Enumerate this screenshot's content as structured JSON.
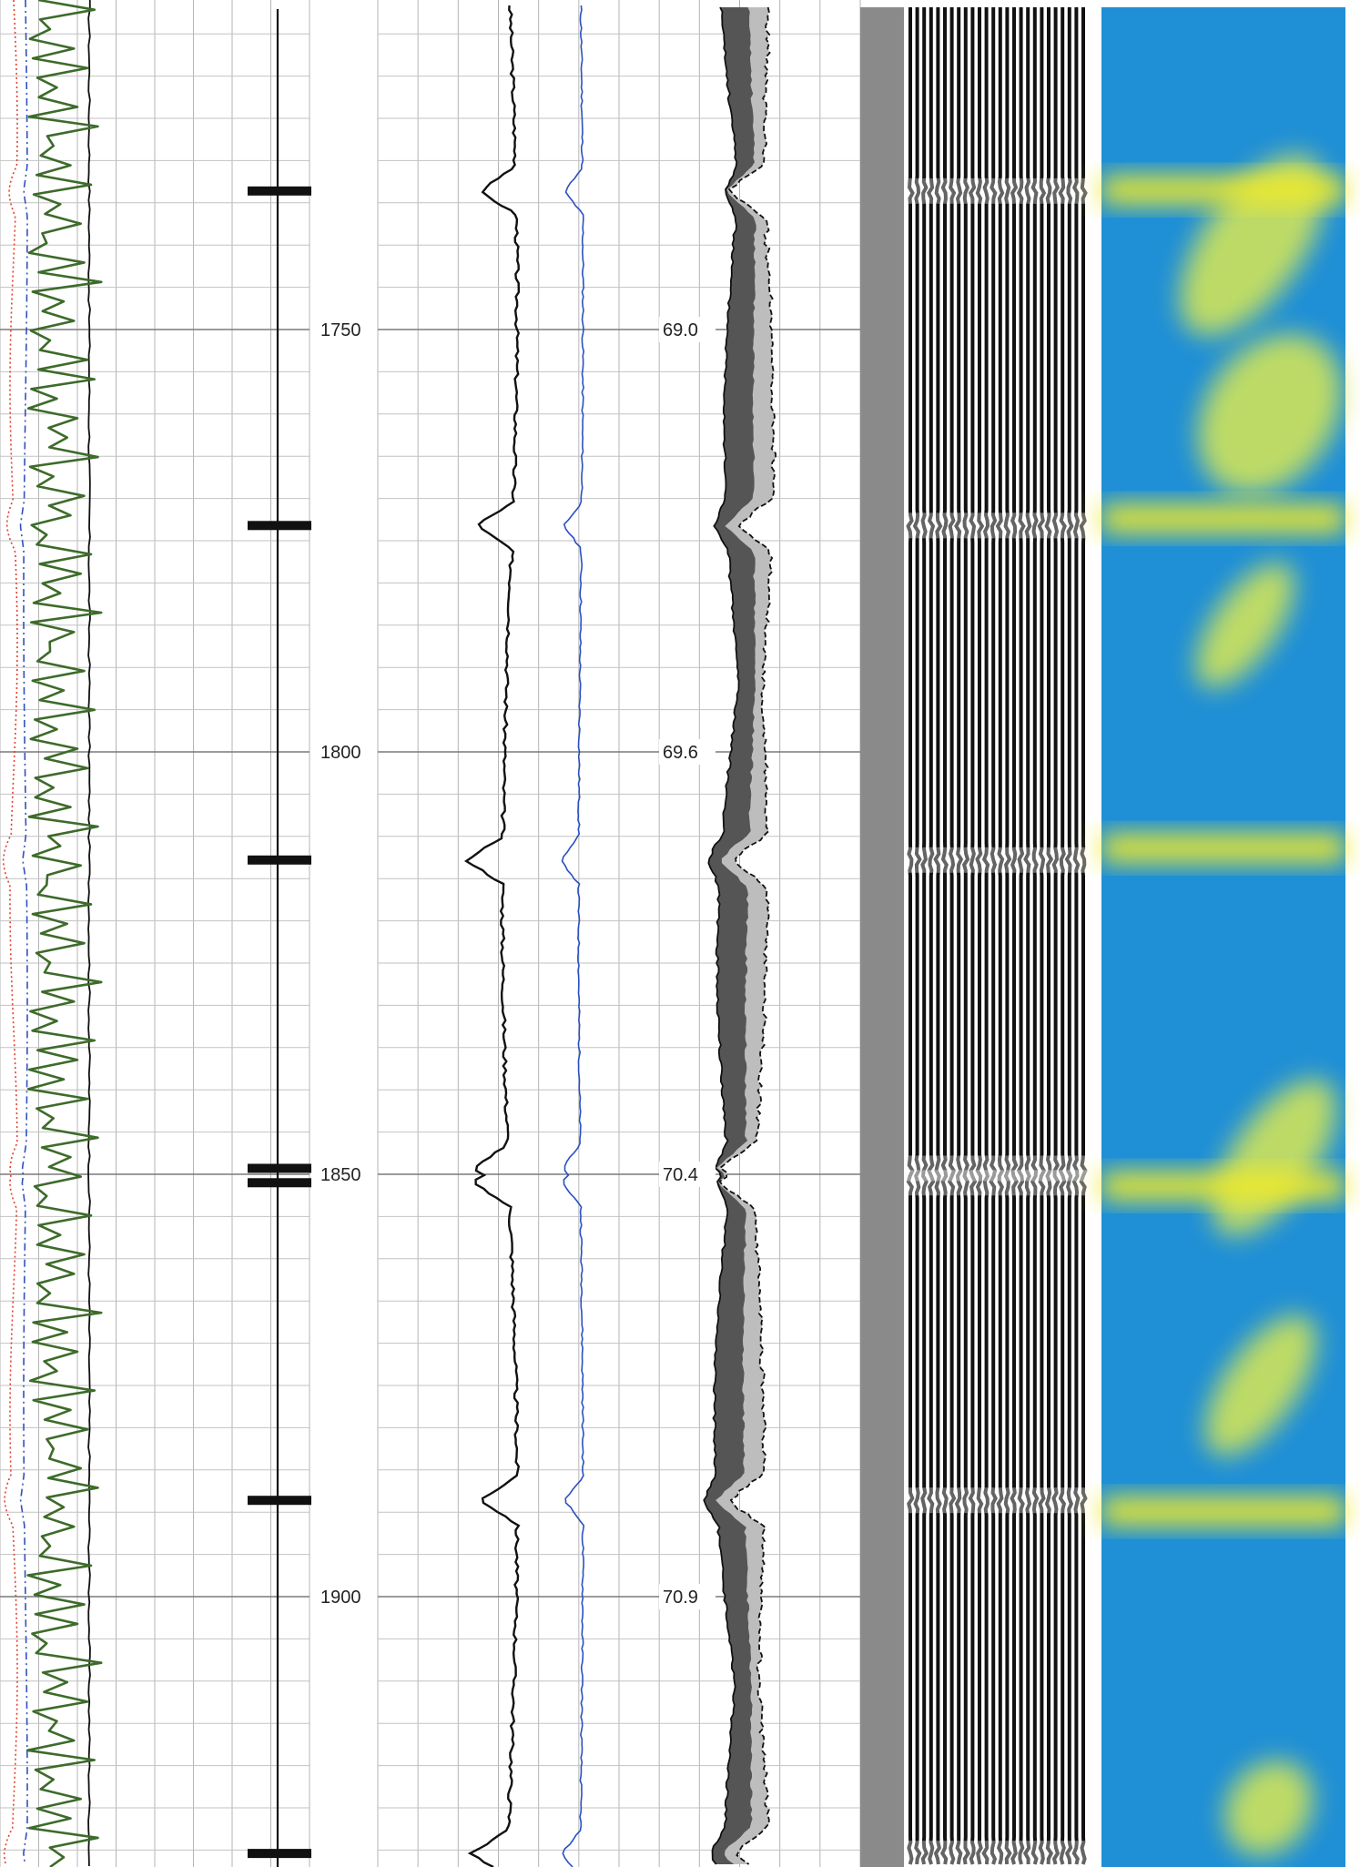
{
  "chart_data": {
    "type": "line",
    "title": "",
    "depth_axis": {
      "unit": "",
      "range": [
        1711,
        1932
      ],
      "major_step": 50,
      "minor_step": 5
    },
    "depth_labels": [
      "1750",
      "1800",
      "1850",
      "1900"
    ],
    "depth_label_values": [
      1750,
      1800,
      1850,
      1900
    ],
    "transit_time_labels": [
      "69.0",
      "69.6",
      "70.4",
      "70.9"
    ],
    "transit_time_depths": [
      1750,
      1800,
      1850,
      1900
    ],
    "collar_depths": [
      1733.6,
      1773.2,
      1812.8,
      1849.3,
      1851.0,
      1888.6,
      1930.4
    ],
    "gamma_ray_series": {
      "color": "#3d6b2a",
      "baseline": 0.52,
      "spikes": [
        0.85,
        0.2,
        0.55,
        0.75,
        0.3,
        0.6,
        0.9,
        0.25,
        0.5,
        0.8,
        0.35,
        0.65,
        0.15,
        0.7,
        0.95,
        0.4,
        0.55,
        0.2,
        0.75,
        0.85,
        0.3,
        0.6,
        0.45,
        0.9,
        0.25,
        0.7,
        0.5,
        0.15,
        0.8,
        0.65,
        0.35,
        0.95,
        0.55,
        0.2,
        0.7,
        0.4,
        0.85,
        0.3,
        0.6,
        0.75,
        0.25,
        0.5,
        0.9,
        0.35,
        0.65,
        0.15,
        0.8,
        0.45,
        0.7,
        0.2,
        0.95,
        0.55,
        0.3,
        0.85,
        0.6,
        0.4,
        0.75,
        0.25,
        0.9,
        0.5,
        0.65,
        0.15,
        0.8,
        0.35,
        0.7,
        0.55,
        0.2,
        0.95,
        0.45,
        0.6,
        0.3,
        0.85,
        0.5,
        0.75,
        0.25,
        0.65,
        0.9,
        0.4,
        0.55,
        0.2,
        0.8,
        0.35,
        0.7,
        0.6,
        0.15,
        0.95,
        0.45,
        0.75,
        0.3,
        0.55,
        0.85,
        0.25,
        0.65,
        0.5,
        0.9,
        0.4
      ]
    },
    "ccl_red_series": {
      "color": "#e04030",
      "line_style": "dotted"
    },
    "ccl_blue_series": {
      "color": "#3050c0",
      "line_style": "dashed"
    },
    "amplitude_series": [
      {
        "color": "#111111",
        "line_style": "solid"
      },
      {
        "color": "#2a50c0",
        "line_style": "solid"
      }
    ],
    "travel_time_series": {
      "dark_fill": "#555555",
      "light_fill": "#bdbdbd",
      "outline": "#111111"
    },
    "vdl": {
      "background": "#ffffff",
      "stripe_color": "#111111",
      "lead_band_color": "#8a8a8a"
    },
    "cement_map": {
      "background": "#1f8fd6",
      "collar_band_color": "#f0ea2a",
      "bond_patch_color": "#cfe35a"
    }
  }
}
